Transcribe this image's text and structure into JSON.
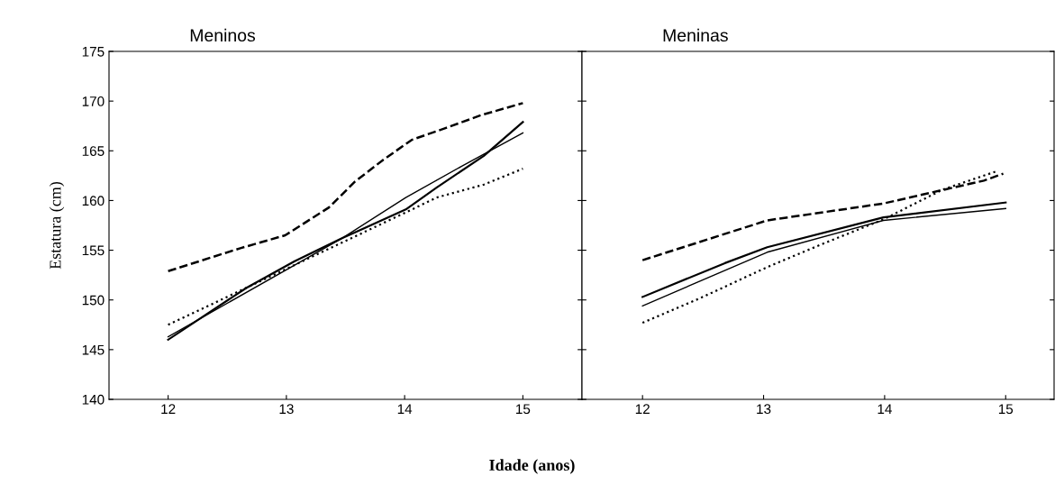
{
  "chart_data": [
    {
      "type": "line",
      "title": "Meninos",
      "xlabel": "Idade (anos)",
      "ylabel": "Estatura (cm)",
      "xlim": [
        11.5,
        15.5
      ],
      "xticks": [
        12,
        13,
        14,
        15
      ],
      "ylim": [
        140,
        175
      ],
      "yticks": [
        140,
        145,
        150,
        155,
        160,
        165,
        170,
        175
      ],
      "grid": false,
      "legend": false,
      "series": [
        {
          "color": "#000000",
          "line_style": "dashed",
          "x": [
            12,
            12.61,
            12.99,
            13.36,
            13.58,
            13.82,
            14.06,
            14.35,
            14.65,
            15
          ],
          "values": [
            152.9,
            155.2,
            156.5,
            159.3,
            161.9,
            164.1,
            166.1,
            167.3,
            168.6,
            169.8
          ]
        },
        {
          "color": "#000000",
          "line_style": "solid",
          "x": [
            12,
            12.66,
            13.07,
            13.47,
            14.01,
            14.27,
            14.67,
            15
          ],
          "values": [
            146.0,
            151.2,
            153.9,
            156.2,
            159.1,
            161.3,
            164.5,
            167.9
          ]
        },
        {
          "color": "#000000",
          "line_style": "solid",
          "x": [
            12,
            13.47,
            14.01,
            14.49,
            15
          ],
          "values": [
            146.3,
            156.2,
            160.3,
            163.5,
            166.8
          ]
        },
        {
          "color": "#000000",
          "line_style": "dotted",
          "x": [
            12,
            13.6,
            14.01,
            14.27,
            14.67,
            15
          ],
          "values": [
            147.5,
            156.5,
            158.8,
            160.3,
            161.6,
            163.2
          ]
        }
      ]
    },
    {
      "type": "line",
      "title": "Meninas",
      "xlim": [
        11.5,
        15.4
      ],
      "xticks": [
        12,
        13,
        14,
        15
      ],
      "ylim": [
        140,
        175
      ],
      "yticks": [
        140,
        145,
        150,
        155,
        160,
        165,
        170,
        175
      ],
      "tick_labels": "x",
      "grid": false,
      "legend": false,
      "series": [
        {
          "color": "#000000",
          "line_style": "dashed",
          "x": [
            12,
            13.03,
            13.99,
            14.82,
            14.98
          ],
          "values": [
            154.0,
            158.0,
            159.7,
            162.0,
            162.7
          ]
        },
        {
          "color": "#000000",
          "line_style": "solid",
          "x": [
            12,
            12.68,
            13.03,
            13.99,
            15
          ],
          "values": [
            150.3,
            153.7,
            155.3,
            158.3,
            159.8
          ]
        },
        {
          "color": "#000000",
          "line_style": "solid",
          "x": [
            12,
            13.03,
            13.99,
            15
          ],
          "values": [
            149.4,
            154.8,
            158.0,
            159.2
          ]
        },
        {
          "color": "#000000",
          "line_style": "dotted",
          "x": [
            12,
            12.48,
            13.03,
            13.48,
            13.99,
            14.48,
            14.94
          ],
          "values": [
            147.7,
            150.2,
            153.3,
            155.6,
            158.1,
            161.1,
            163.0
          ]
        }
      ]
    }
  ]
}
